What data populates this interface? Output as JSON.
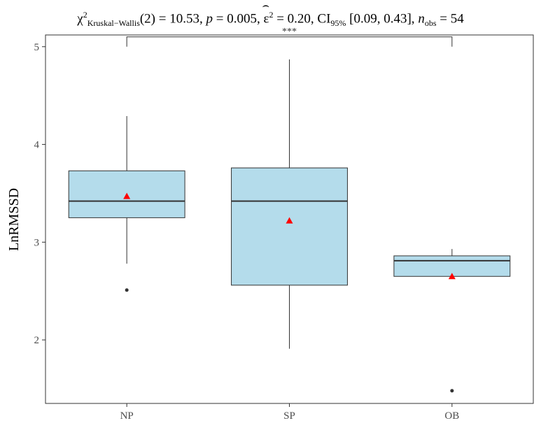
{
  "title": {
    "chi_symbol": "χ",
    "chi_sup": "2",
    "chi_sub": "Kruskal−Wallis",
    "df_text": "(2) = 10.53, ",
    "p_label": "p",
    "p_text": " = 0.005, ",
    "eps_symbol": "ε",
    "eps_sup": "2",
    "eps_text": " = 0.20, CI",
    "ci_sub": "95%",
    "ci_text": " [0.09, 0.43], ",
    "n_label": "n",
    "n_sub": "obs",
    "n_text": " = 54"
  },
  "chart_data": {
    "type": "boxplot",
    "ylabel": "LnRMSSD",
    "xlabel": "",
    "ylim": [
      1.35,
      5.12
    ],
    "yticks": [
      2,
      3,
      4,
      5
    ],
    "categories": [
      "NP",
      "SP",
      "OB"
    ],
    "grid": false,
    "box_fill": "#b4dceb",
    "mean_color": "#ff0000",
    "boxes": [
      {
        "name": "NP",
        "whisker_low": 2.78,
        "q1": 3.25,
        "median": 3.42,
        "q3": 3.73,
        "whisker_high": 4.29,
        "mean": 3.47,
        "outliers": [
          2.51
        ]
      },
      {
        "name": "SP",
        "whisker_low": 1.91,
        "q1": 2.56,
        "median": 3.42,
        "q3": 3.76,
        "whisker_high": 4.87,
        "mean": 3.22,
        "outliers": []
      },
      {
        "name": "OB",
        "whisker_low": 2.65,
        "q1": 2.65,
        "median": 2.81,
        "q3": 2.86,
        "whisker_high": 2.93,
        "mean": 2.65,
        "outliers": [
          1.48
        ]
      }
    ],
    "annotations": [
      {
        "from": "NP",
        "to": "OB",
        "y": 5.1,
        "label": "***"
      }
    ]
  }
}
